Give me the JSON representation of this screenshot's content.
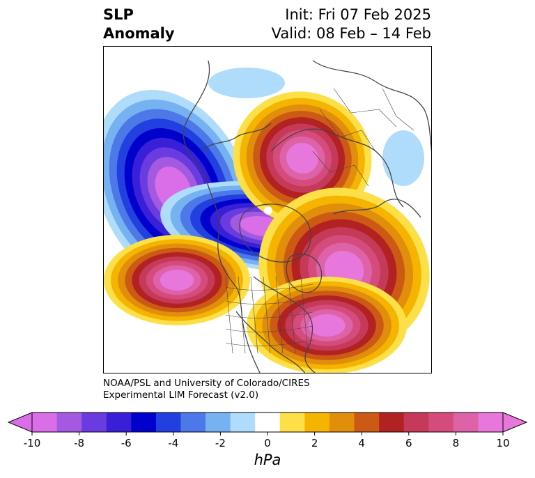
{
  "title": {
    "left_line1": "SLP",
    "left_line2": "Anomaly",
    "right_line1": "Init: Fri 07 Feb 2025",
    "right_line2": "Valid: 08 Feb – 14 Feb"
  },
  "credit": {
    "line1": "NOAA/PSL and University of Colorado/CIRES",
    "line2": "Experimental LIM Forecast (v2.0)"
  },
  "colorbar": {
    "unit": "hPa",
    "min": -10,
    "max": 10,
    "ticks": [
      "-10",
      "-8",
      "-6",
      "-4",
      "-2",
      "0",
      "2",
      "4",
      "6",
      "8",
      "10"
    ],
    "colors": [
      "#d96ee8",
      "#a35ae0",
      "#6a3ce0",
      "#3a1fd8",
      "#0000cc",
      "#2240e0",
      "#4d78e8",
      "#76b2f2",
      "#aedcfa",
      "#ffffff",
      "#fde047",
      "#f4b400",
      "#e08e0b",
      "#cc5a14",
      "#b22222",
      "#c43a58",
      "#d54c7c",
      "#dd62a8",
      "#e777da"
    ]
  },
  "map": {
    "projection": "north-polar stereographic",
    "variable": "sea level pressure anomaly",
    "anomaly_centers": [
      {
        "region": "North Pacific / Gulf of Alaska",
        "sign": "negative",
        "peak_hpa": -10
      },
      {
        "region": "Arctic / Canadian Archipelago",
        "sign": "negative",
        "peak_hpa": -10
      },
      {
        "region": "Western Siberia / Ural",
        "sign": "positive",
        "peak_hpa": 10
      },
      {
        "region": "Central Pacific",
        "sign": "positive",
        "peak_hpa": 10
      },
      {
        "region": "North Atlantic",
        "sign": "positive",
        "peak_hpa": 10
      },
      {
        "region": "Eastern United States",
        "sign": "positive",
        "peak_hpa": 10
      }
    ]
  }
}
